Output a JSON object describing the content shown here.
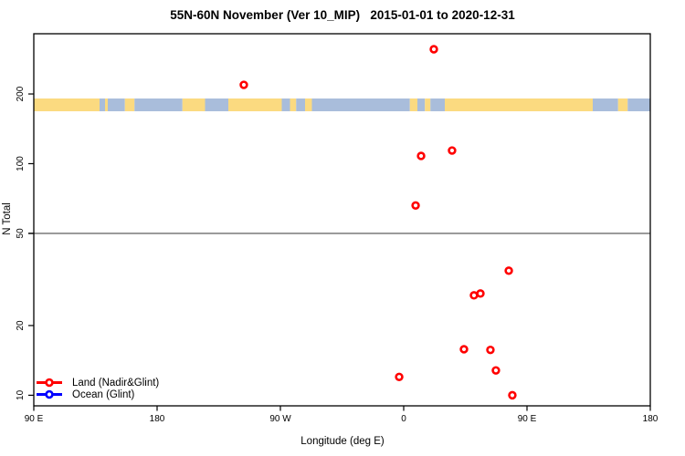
{
  "title": "55N-60N November (Ver 10_MIP)   2015-01-01 to 2020-12-31",
  "colors": {
    "land": "#FBDA80",
    "ocean": "#A9BDDB",
    "land_series": "#FF0000",
    "ocean_series": "#0000FF",
    "reference_line": "#8C8C8C",
    "axis": "#000000"
  },
  "legend": {
    "items": [
      {
        "label": "Land (Nadir&Glint)",
        "color": "#FF0000"
      },
      {
        "label": "Ocean (Glint)",
        "color": "#0000FF"
      }
    ]
  },
  "chart_data": {
    "type": "scatter",
    "title": "55N-60N November (Ver 10_MIP)   2015-01-01 to 2020-12-31",
    "xlabel": "Longitude (deg E)",
    "ylabel": "N Total",
    "x_axis": {
      "description": "longitude axis starting at 90E going eastward 450 degrees",
      "range_deg": [
        90,
        540
      ],
      "ticks": [
        {
          "deg": 90,
          "label": "90 E"
        },
        {
          "deg": 180,
          "label": "180"
        },
        {
          "deg": 270,
          "label": "90 W"
        },
        {
          "deg": 360,
          "label": "0"
        },
        {
          "deg": 450,
          "label": "90 E"
        },
        {
          "deg": 540,
          "label": "180"
        }
      ]
    },
    "y_axis": {
      "scale": "log",
      "range": [
        9.0,
        364
      ],
      "ticks": [
        10,
        20,
        50,
        100,
        200
      ]
    },
    "reference_line_y": 50,
    "grid": false,
    "legend_position": "bottom-left",
    "series": [
      {
        "name": "Land (Nadir&Glint)",
        "color": "#FF0000",
        "points": [
          {
            "x_deg": 382,
            "lon_label": "22 E",
            "n": 312
          },
          {
            "x_deg": 243.3,
            "lon_label": "117 W",
            "n": 219
          },
          {
            "x_deg": 372.7,
            "lon_label": "13 E",
            "n": 108
          },
          {
            "x_deg": 395.3,
            "lon_label": "35 E",
            "n": 114
          },
          {
            "x_deg": 368.7,
            "lon_label": "9 E",
            "n": 66
          },
          {
            "x_deg": 436.7,
            "lon_label": "77 E",
            "n": 34.5
          },
          {
            "x_deg": 411.3,
            "lon_label": "51 E",
            "n": 27
          },
          {
            "x_deg": 416,
            "lon_label": "56 E",
            "n": 27.5
          },
          {
            "x_deg": 404,
            "lon_label": "44 E",
            "n": 15.8
          },
          {
            "x_deg": 423.3,
            "lon_label": "63 E",
            "n": 15.7
          },
          {
            "x_deg": 427.3,
            "lon_label": "67 E",
            "n": 12.8
          },
          {
            "x_deg": 356.7,
            "lon_label": "3 W",
            "n": 12
          },
          {
            "x_deg": 439.3,
            "lon_label": "79 E",
            "n": 10
          }
        ]
      },
      {
        "name": "Ocean (Glint)",
        "color": "#0000FF",
        "points": []
      }
    ]
  },
  "map_band": {
    "description": "land/ocean strip for 55N-60N drawn across the plot near N=200",
    "segments": [
      {
        "from_deg": 90,
        "to_deg": 138,
        "type": "land"
      },
      {
        "from_deg": 138,
        "to_deg": 142,
        "type": "ocean"
      },
      {
        "from_deg": 142,
        "to_deg": 144,
        "type": "land"
      },
      {
        "from_deg": 144,
        "to_deg": 156.5,
        "type": "ocean"
      },
      {
        "from_deg": 156.5,
        "to_deg": 163.5,
        "type": "land"
      },
      {
        "from_deg": 163.5,
        "to_deg": 198.5,
        "type": "ocean"
      },
      {
        "from_deg": 198.5,
        "to_deg": 215,
        "type": "land"
      },
      {
        "from_deg": 215,
        "to_deg": 232,
        "type": "ocean"
      },
      {
        "from_deg": 232,
        "to_deg": 271,
        "type": "land"
      },
      {
        "from_deg": 271,
        "to_deg": 277,
        "type": "ocean"
      },
      {
        "from_deg": 277,
        "to_deg": 281.5,
        "type": "land"
      },
      {
        "from_deg": 281.5,
        "to_deg": 288,
        "type": "ocean"
      },
      {
        "from_deg": 288,
        "to_deg": 293,
        "type": "land"
      },
      {
        "from_deg": 293,
        "to_deg": 364.5,
        "type": "ocean"
      },
      {
        "from_deg": 364.5,
        "to_deg": 370,
        "type": "land"
      },
      {
        "from_deg": 370,
        "to_deg": 375.5,
        "type": "ocean"
      },
      {
        "from_deg": 375.5,
        "to_deg": 379.5,
        "type": "land"
      },
      {
        "from_deg": 379.5,
        "to_deg": 390,
        "type": "ocean"
      },
      {
        "from_deg": 390,
        "to_deg": 498,
        "type": "land"
      },
      {
        "from_deg": 498,
        "to_deg": 516.5,
        "type": "ocean"
      },
      {
        "from_deg": 516.5,
        "to_deg": 523.5,
        "type": "land"
      },
      {
        "from_deg": 523.5,
        "to_deg": 540,
        "type": "ocean"
      }
    ]
  }
}
